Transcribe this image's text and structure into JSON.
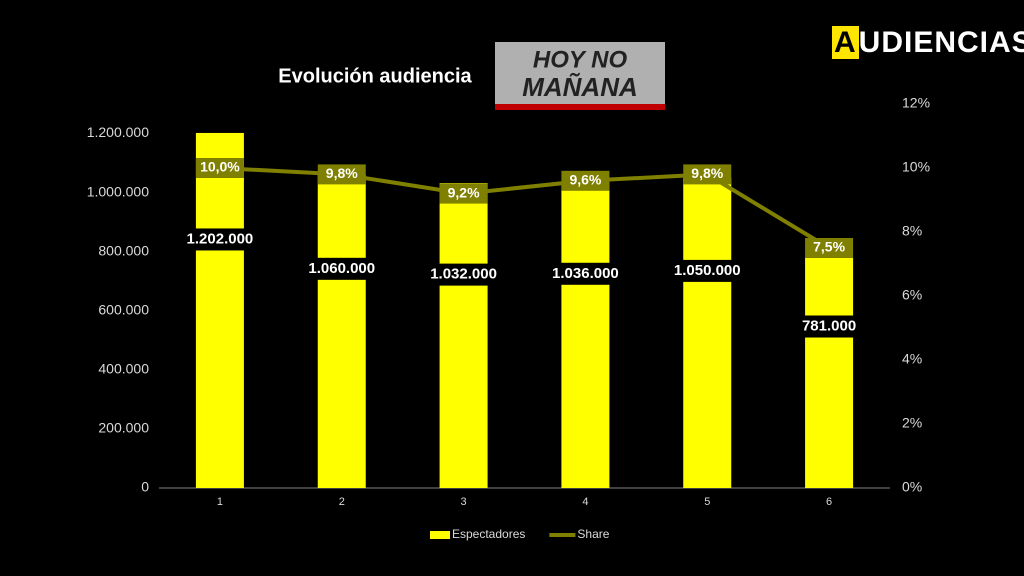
{
  "brand": "AUDIENCIAS",
  "logo": [
    "HOY NO",
    "MAÑANA"
  ],
  "chart_data": {
    "type": "bar",
    "title": "Evolución audiencia",
    "categories": [
      "1",
      "2",
      "3",
      "4",
      "5",
      "6"
    ],
    "series": [
      {
        "name": "Espectadores",
        "type": "bar",
        "color": "#ffff00",
        "values": [
          1202000,
          1060000,
          1032000,
          1036000,
          1050000,
          781000
        ],
        "value_labels": [
          "1.202.000",
          "1.060.000",
          "1.032.000",
          "1.036.000",
          "1.050.000",
          "781.000"
        ]
      },
      {
        "name": "Share",
        "type": "line",
        "axis": "y2",
        "color": "#7f7f00",
        "values": [
          10.0,
          9.8,
          9.2,
          9.6,
          9.8,
          7.5
        ],
        "value_labels": [
          "10,0%",
          "9,8%",
          "9,2%",
          "9,6%",
          "9,8%",
          "7,5%"
        ]
      }
    ],
    "ylim": [
      0,
      1300000
    ],
    "yticks": [
      0,
      {
        "value": 200000,
        "label": "200.000"
      },
      {
        "value": 400000,
        "label": "400.000"
      },
      {
        "value": 600000,
        "label": "600.000"
      },
      {
        "value": 800000,
        "label": "800.000"
      },
      {
        "value": 1000000,
        "label": "1.000.000"
      },
      {
        "value": 1200000,
        "label": "1.200.000"
      }
    ],
    "y2lim": [
      0,
      12
    ],
    "y2ticks": [
      {
        "value": 0,
        "label": "0%"
      },
      {
        "value": 2,
        "label": "2%"
      },
      {
        "value": 4,
        "label": "4%"
      },
      {
        "value": 6,
        "label": "6%"
      },
      {
        "value": 8,
        "label": "8%"
      },
      {
        "value": 10,
        "label": "10%"
      },
      {
        "value": 12,
        "label": "12%"
      }
    ],
    "grid": false,
    "legend": "bottom"
  }
}
